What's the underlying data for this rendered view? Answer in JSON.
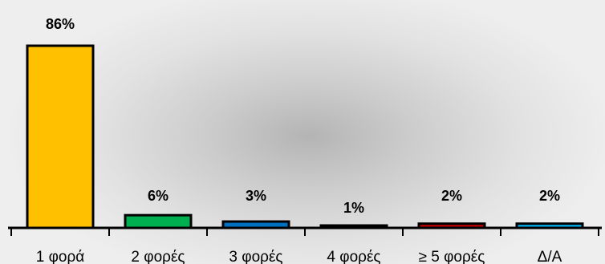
{
  "chart_data": {
    "type": "bar",
    "categories": [
      "1 φορά",
      "2 φορές",
      "3 φορές",
      "4 φορές",
      "≥ 5 φορές",
      "Δ/Α"
    ],
    "values": [
      86,
      6,
      3,
      1,
      2,
      2
    ],
    "value_labels": [
      "86%",
      "6%",
      "3%",
      "1%",
      "2%",
      "2%"
    ],
    "unit": "%",
    "title": "",
    "xlabel": "",
    "ylabel": "",
    "ylim": [
      0,
      86
    ],
    "grid": false,
    "legend": "none",
    "colors": [
      "#ffc000",
      "#00b050",
      "#0070c0",
      "#002060",
      "#c00000",
      "#00b0f0"
    ],
    "outline_color": "#000000"
  }
}
